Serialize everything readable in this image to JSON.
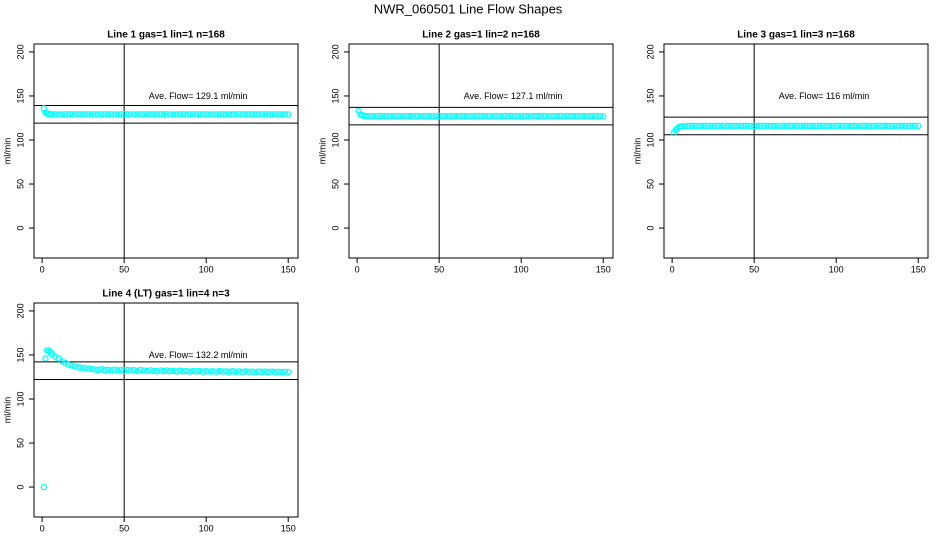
{
  "title": "NWR_060501  Line Flow Shapes",
  "chart_data": [
    {
      "type": "scatter",
      "title": "Line 1 gas=1 lin=1 n=168",
      "ylabel": "ml/min",
      "annotation": "Ave. Flow=  129.1  ml/min",
      "color": "#00ffff",
      "xlim": [
        -4.96,
        155.96
      ],
      "ylim": [
        -34,
        209
      ],
      "xticks": [
        0,
        50,
        100,
        150
      ],
      "yticks": [
        0,
        50,
        100,
        150,
        200
      ],
      "hlines": [
        139.1,
        119.1
      ],
      "vlines": [
        50
      ],
      "x": [
        1,
        2,
        3,
        4,
        5,
        6,
        8,
        10,
        12,
        14,
        16,
        18,
        20,
        22,
        24,
        26,
        28,
        30,
        32,
        34,
        36,
        38,
        40,
        42,
        44,
        46,
        48,
        50,
        52,
        54,
        56,
        58,
        60,
        62,
        64,
        66,
        68,
        70,
        72,
        74,
        76,
        78,
        80,
        82,
        84,
        86,
        88,
        90,
        92,
        94,
        96,
        98,
        100,
        102,
        104,
        106,
        108,
        110,
        112,
        114,
        116,
        118,
        120,
        122,
        124,
        126,
        128,
        130,
        132,
        134,
        136,
        138,
        140,
        142,
        144,
        146,
        148,
        150
      ],
      "values": [
        136,
        131,
        130,
        129.5,
        129.3,
        129.2,
        129.1,
        129.0,
        129.1,
        129.2,
        129.1,
        129.1,
        129.0,
        129.1,
        129.2,
        129.1,
        129.1,
        129.0,
        129.1,
        129.0,
        129.1,
        129.2,
        129.1,
        129.1,
        129.0,
        129.1,
        129.2,
        129.1,
        129.1,
        129.0,
        129.1,
        129.0,
        129.1,
        129.2,
        129.1,
        129.1,
        129.0,
        129.1,
        129.2,
        129.1,
        129.1,
        129.0,
        129.1,
        129.0,
        129.1,
        129.2,
        129.1,
        129.1,
        129.0,
        129.1,
        129.2,
        129.1,
        129.1,
        129.0,
        129.1,
        129.0,
        129.1,
        129.2,
        129.1,
        129.1,
        129.0,
        129.1,
        129.2,
        129.1,
        129.1,
        129.0,
        129.1,
        129.0,
        129.1,
        129.2,
        129.1,
        129.1,
        129.0,
        129.1,
        129.2,
        129.1,
        129.1,
        129.0
      ]
    },
    {
      "type": "scatter",
      "title": "Line 2 gas=1 lin=2 n=168",
      "ylabel": "ml/min",
      "annotation": "Ave. Flow=  127.1  ml/min",
      "color": "#00ffff",
      "xlim": [
        -4.96,
        155.96
      ],
      "ylim": [
        -34,
        209
      ],
      "xticks": [
        0,
        50,
        100,
        150
      ],
      "yticks": [
        0,
        50,
        100,
        150,
        200
      ],
      "hlines": [
        137.1,
        117.1
      ],
      "vlines": [
        50
      ],
      "x": [
        1,
        2,
        3,
        4,
        5,
        6,
        8,
        10,
        12,
        14,
        16,
        18,
        20,
        22,
        24,
        26,
        28,
        30,
        32,
        34,
        36,
        38,
        40,
        42,
        44,
        46,
        48,
        50,
        52,
        54,
        56,
        58,
        60,
        62,
        64,
        66,
        68,
        70,
        72,
        74,
        76,
        78,
        80,
        82,
        84,
        86,
        88,
        90,
        92,
        94,
        96,
        98,
        100,
        102,
        104,
        106,
        108,
        110,
        112,
        114,
        116,
        118,
        120,
        122,
        124,
        126,
        128,
        130,
        132,
        134,
        136,
        138,
        140,
        142,
        144,
        146,
        148,
        150
      ],
      "values": [
        133,
        129,
        128,
        127.5,
        127.3,
        127.2,
        127.1,
        127.0,
        127.1,
        127.2,
        127.1,
        127.1,
        127.0,
        127.1,
        127.2,
        127.1,
        127.1,
        127.0,
        127.1,
        127.0,
        127.1,
        127.2,
        127.1,
        127.1,
        127.0,
        127.1,
        127.2,
        127.1,
        127.1,
        127.0,
        127.1,
        127.0,
        127.1,
        127.2,
        127.1,
        127.1,
        127.0,
        127.1,
        127.2,
        127.1,
        127.1,
        127.0,
        127.1,
        127.0,
        127.1,
        127.2,
        127.1,
        127.1,
        127.0,
        127.1,
        127.2,
        127.1,
        127.1,
        127.0,
        127.1,
        127.0,
        127.1,
        127.2,
        127.1,
        127.1,
        127.0,
        127.1,
        127.2,
        127.1,
        127.1,
        127.0,
        127.1,
        127.0,
        127.1,
        127.2,
        127.1,
        127.1,
        127.0,
        127.1,
        127.2,
        127.1,
        127.1,
        127.0
      ]
    },
    {
      "type": "scatter",
      "title": "Line 3 gas=1 lin=3 n=168",
      "ylabel": "ml/min",
      "annotation": "Ave. Flow=  116  ml/min",
      "color": "#00ffff",
      "xlim": [
        -4.96,
        155.96
      ],
      "ylim": [
        -34,
        209
      ],
      "xticks": [
        0,
        50,
        100,
        150
      ],
      "yticks": [
        0,
        50,
        100,
        150,
        200
      ],
      "hlines": [
        126,
        106
      ],
      "vlines": [
        50
      ],
      "x": [
        1,
        2,
        3,
        4,
        5,
        6,
        8,
        10,
        12,
        14,
        16,
        18,
        20,
        22,
        24,
        26,
        28,
        30,
        32,
        34,
        36,
        38,
        40,
        42,
        44,
        46,
        48,
        50,
        52,
        54,
        56,
        58,
        60,
        62,
        64,
        66,
        68,
        70,
        72,
        74,
        76,
        78,
        80,
        82,
        84,
        86,
        88,
        90,
        92,
        94,
        96,
        98,
        100,
        102,
        104,
        106,
        108,
        110,
        112,
        114,
        116,
        118,
        120,
        122,
        124,
        126,
        128,
        130,
        132,
        134,
        136,
        138,
        140,
        142,
        144,
        146,
        148,
        150
      ],
      "values": [
        108,
        111,
        113,
        114.5,
        115.2,
        115.6,
        115.8,
        116.0,
        116.1,
        115.9,
        116.0,
        116.0,
        116.1,
        116.0,
        115.9,
        116.0,
        116.1,
        116.0,
        116.0,
        116.1,
        116.0,
        115.9,
        116.0,
        116.0,
        116.1,
        116.0,
        115.9,
        116.0,
        116.1,
        116.0,
        116.0,
        116.1,
        116.0,
        115.9,
        116.0,
        116.0,
        116.1,
        116.0,
        115.9,
        116.0,
        116.1,
        116.0,
        116.0,
        116.1,
        116.0,
        115.9,
        116.0,
        116.0,
        116.1,
        116.0,
        115.9,
        116.0,
        116.1,
        116.0,
        116.0,
        116.1,
        116.0,
        115.9,
        116.0,
        116.0,
        116.1,
        116.0,
        115.9,
        116.0,
        116.1,
        116.0,
        116.0,
        116.1,
        116.0,
        115.9,
        116.0,
        116.0,
        116.1,
        116.0,
        115.9,
        116.0,
        116.1,
        116.0
      ]
    },
    {
      "type": "scatter",
      "title": "Line 4 (LT) gas=1 lin=4 n=3",
      "ylabel": "ml/min",
      "annotation": "Ave. Flow=  132.2  ml/min",
      "color": "#00ffff",
      "xlim": [
        -4.96,
        155.96
      ],
      "ylim": [
        -34,
        209
      ],
      "xticks": [
        0,
        50,
        100,
        150
      ],
      "yticks": [
        0,
        50,
        100,
        150,
        200
      ],
      "hlines": [
        142.2,
        122.2
      ],
      "vlines": [
        50
      ],
      "x": [
        1,
        2,
        3,
        4,
        5,
        6,
        8,
        10,
        12,
        14,
        16,
        18,
        20,
        22,
        24,
        26,
        28,
        30,
        32,
        34,
        36,
        38,
        40,
        42,
        44,
        46,
        48,
        50,
        52,
        54,
        56,
        58,
        60,
        62,
        64,
        66,
        68,
        70,
        72,
        74,
        76,
        78,
        80,
        82,
        84,
        86,
        88,
        90,
        92,
        94,
        96,
        98,
        100,
        102,
        104,
        106,
        108,
        110,
        112,
        114,
        116,
        118,
        120,
        122,
        124,
        126,
        128,
        130,
        132,
        134,
        136,
        138,
        140,
        142,
        144,
        146,
        148,
        150
      ],
      "values": [
        0,
        146,
        155,
        155,
        153,
        151,
        148,
        146,
        143,
        141,
        139,
        138,
        137,
        136,
        135.5,
        135,
        134.5,
        134,
        133.5,
        133,
        133.8,
        132.8,
        133.2,
        132.5,
        133.4,
        132.6,
        133,
        132.2,
        133.1,
        132.4,
        132.8,
        132,
        132.9,
        132.3,
        131.8,
        132.6,
        132,
        131.5,
        132.4,
        131.8,
        132.2,
        131.6,
        131.9,
        131.3,
        132.1,
        131.5,
        131.8,
        131.2,
        131.9,
        131.4,
        131.7,
        131,
        131.6,
        131.2,
        131.5,
        130.9,
        131.7,
        131.1,
        131.4,
        130.8,
        131.5,
        131,
        131.3,
        130.7,
        131.4,
        130.9,
        131.2,
        130.6,
        131.3,
        130.8,
        131.1,
        130.5,
        131.2,
        130.7,
        131,
        130.5,
        130.9,
        130.6
      ]
    }
  ]
}
